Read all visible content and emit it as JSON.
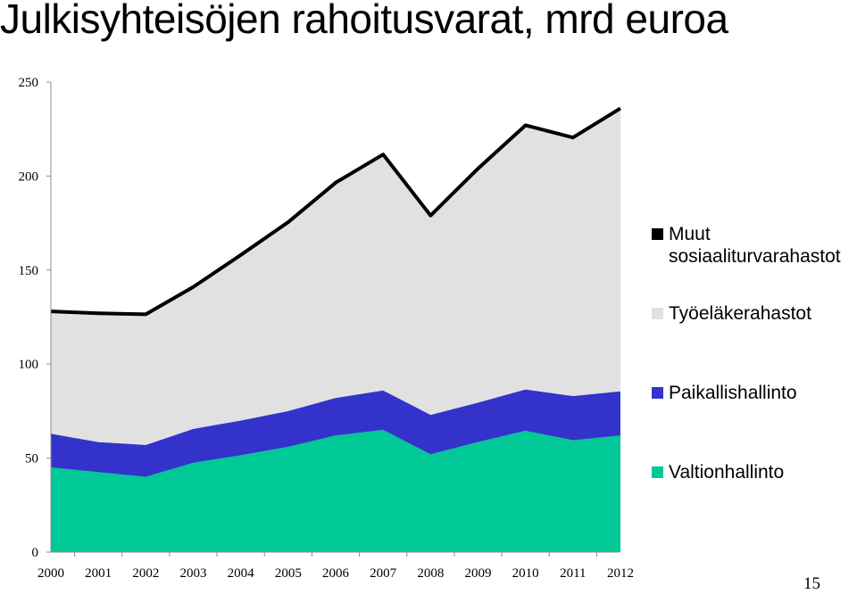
{
  "slide": {
    "title": "Julkisyhteisöjen rahoitusvarat, mrd euroa",
    "page_number": "15"
  },
  "chart_data": {
    "type": "area",
    "stacked": true,
    "categories": [
      "2000",
      "2001",
      "2002",
      "2003",
      "2004",
      "2005",
      "2006",
      "2007",
      "2008",
      "2009",
      "2010",
      "2011",
      "2012"
    ],
    "ylim": [
      0,
      250
    ],
    "yticks": [
      0,
      50,
      100,
      150,
      200,
      250
    ],
    "grid": false,
    "legend_position": "right",
    "series": [
      {
        "name": "Valtionhallinto",
        "color": "#00C896",
        "values": [
          45,
          42.5,
          40,
          47.5,
          51.5,
          56,
          62,
          65,
          52,
          58.5,
          64.5,
          59.5,
          62
        ]
      },
      {
        "name": "Paikallishallinto",
        "color": "#3333CC",
        "values": [
          18,
          16,
          17,
          18,
          18.5,
          19,
          20,
          21,
          21,
          21,
          22,
          23.5,
          23.5
        ]
      },
      {
        "name": "Työeläkerahastot",
        "color": "#E1E1E1",
        "values": [
          64.5,
          68,
          69,
          75,
          87.5,
          100,
          114,
          125,
          105.5,
          124,
          140,
          137,
          150
        ]
      },
      {
        "name": "Muut sosiaaliturvarahastot",
        "color": "#000000",
        "values": [
          0.5,
          0.5,
          0.5,
          0.5,
          0.5,
          0.5,
          0.5,
          0.5,
          0.5,
          0.5,
          0.5,
          0.5,
          0.5
        ]
      }
    ]
  }
}
